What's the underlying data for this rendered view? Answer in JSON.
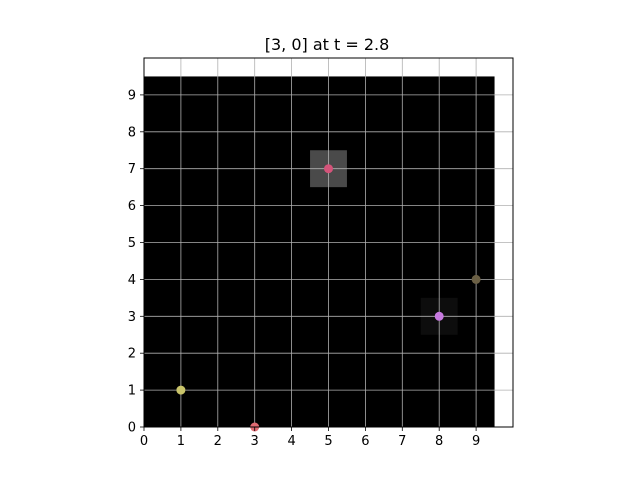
{
  "title": "[3, 0] at t = 2.8",
  "chart_data": {
    "type": "scatter",
    "title": "[3, 0] at t = 2.8",
    "xlabel": "",
    "ylabel": "",
    "xlim": [
      0,
      10
    ],
    "ylim": [
      0,
      10
    ],
    "x_ticks": [
      0,
      1,
      2,
      3,
      4,
      5,
      6,
      7,
      8,
      9
    ],
    "y_ticks": [
      0,
      1,
      2,
      3,
      4,
      5,
      6,
      7,
      8,
      9
    ],
    "grid": true,
    "background_field": {
      "extent_x": [
        0,
        9.5
      ],
      "extent_y": [
        0,
        9.5
      ],
      "color": "#000000"
    },
    "highlight_cells": [
      {
        "x": 5,
        "y": 7,
        "color": "#4a4a4a"
      },
      {
        "x": 8,
        "y": 3,
        "color": "#0d0d0d"
      }
    ],
    "points": [
      {
        "x": 5,
        "y": 7,
        "color": "#d4547a"
      },
      {
        "x": 8,
        "y": 3,
        "color": "#c77ae0"
      },
      {
        "x": 9,
        "y": 4,
        "color": "#6b6045"
      },
      {
        "x": 1,
        "y": 1,
        "color": "#c9c46a"
      },
      {
        "x": 3,
        "y": 0,
        "color": "#e06a72"
      }
    ]
  }
}
